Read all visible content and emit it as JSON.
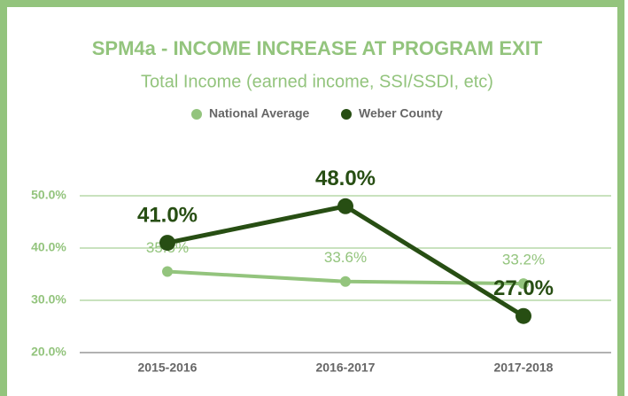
{
  "chart_data": {
    "type": "line",
    "title": "SPM4a - INCOME INCREASE AT PROGRAM EXIT",
    "subtitle": "Total Income (earned income, SSI/SSDI, etc)",
    "categories": [
      "2015-2016",
      "2016-2017",
      "2017-2018"
    ],
    "series": [
      {
        "name": "National Average",
        "color": "#93c47d",
        "values": [
          35.5,
          33.6,
          33.2
        ],
        "value_labels": [
          "35.5%",
          "33.6%",
          "33.2%"
        ]
      },
      {
        "name": "Weber County",
        "color": "#274e13",
        "values": [
          41.0,
          48.0,
          27.0
        ],
        "value_labels": [
          "41.0%",
          "48.0%",
          "27.0%"
        ]
      }
    ],
    "ylim": [
      20,
      50
    ],
    "yticks": [
      {
        "value": 20,
        "label": "20.0%"
      },
      {
        "value": 30,
        "label": "30.0%"
      },
      {
        "value": 40,
        "label": "40.0%"
      },
      {
        "value": 50,
        "label": "50.0%"
      }
    ],
    "grid": true,
    "legend": "top"
  }
}
